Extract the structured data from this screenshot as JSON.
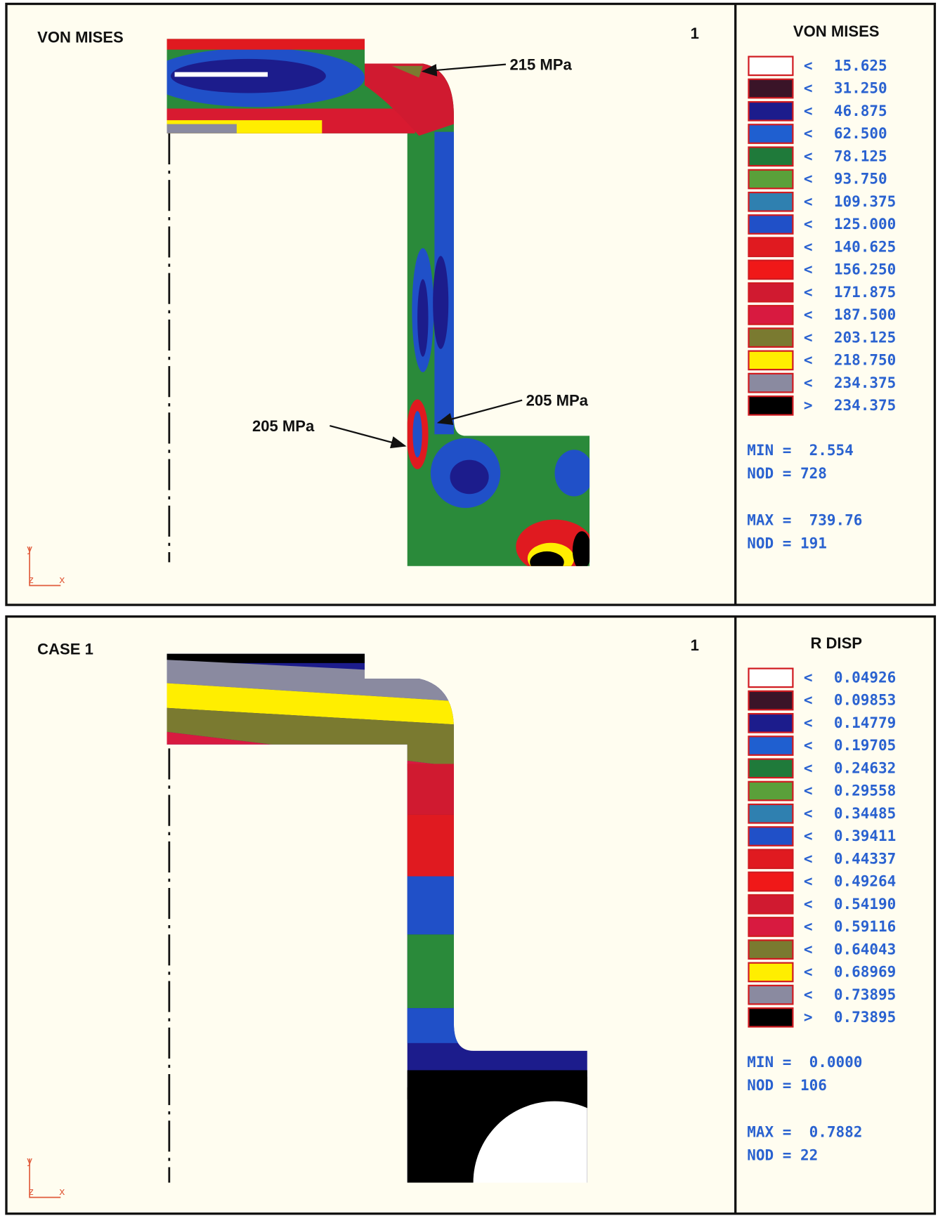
{
  "panels": [
    {
      "title": "VON MISES",
      "number": "1",
      "annotations": [
        "215 MPa",
        "205 MPa",
        "205 MPa"
      ],
      "legend": {
        "title": "VON MISES",
        "items": [
          {
            "op": "<",
            "value": "15.625",
            "color": "#ffffff"
          },
          {
            "op": "<",
            "value": "31.250",
            "color": "#3a1428"
          },
          {
            "op": "<",
            "value": "46.875",
            "color": "#1c1c8c"
          },
          {
            "op": "<",
            "value": "62.500",
            "color": "#1f5fd0"
          },
          {
            "op": "<",
            "value": "78.125",
            "color": "#1f7a3a"
          },
          {
            "op": "<",
            "value": "93.750",
            "color": "#5aa03a"
          },
          {
            "op": "<",
            "value": "109.375",
            "color": "#2f80b0"
          },
          {
            "op": "<",
            "value": "125.000",
            "color": "#2050c8"
          },
          {
            "op": "<",
            "value": "140.625",
            "color": "#e01a20"
          },
          {
            "op": "<",
            "value": "156.250",
            "color": "#f01818"
          },
          {
            "op": "<",
            "value": "171.875",
            "color": "#d01a30"
          },
          {
            "op": "<",
            "value": "187.500",
            "color": "#d81a40"
          },
          {
            "op": "<",
            "value": "203.125",
            "color": "#7a7a30"
          },
          {
            "op": "<",
            "value": "218.750",
            "color": "#ffee00"
          },
          {
            "op": "<",
            "value": "234.375",
            "color": "#8a8aa0"
          },
          {
            "op": ">",
            "value": "234.375",
            "color": "#000000"
          }
        ]
      },
      "stats": [
        "MIN =  2.554",
        "NOD = 728",
        "MAX =  739.76",
        "NOD = 191"
      ],
      "axes": {
        "y": "y",
        "z": "z",
        "x": "x"
      }
    },
    {
      "title": "CASE 1",
      "number": "1",
      "annotations": [],
      "legend": {
        "title": "R DISP",
        "items": [
          {
            "op": "<",
            "value": "0.04926",
            "color": "#ffffff"
          },
          {
            "op": "<",
            "value": "0.09853",
            "color": "#3a1428"
          },
          {
            "op": "<",
            "value": "0.14779",
            "color": "#1c1c8c"
          },
          {
            "op": "<",
            "value": "0.19705",
            "color": "#1f5fd0"
          },
          {
            "op": "<",
            "value": "0.24632",
            "color": "#1f7a3a"
          },
          {
            "op": "<",
            "value": "0.29558",
            "color": "#5aa03a"
          },
          {
            "op": "<",
            "value": "0.34485",
            "color": "#2f80b0"
          },
          {
            "op": "<",
            "value": "0.39411",
            "color": "#2050c8"
          },
          {
            "op": "<",
            "value": "0.44337",
            "color": "#e01a20"
          },
          {
            "op": "<",
            "value": "0.49264",
            "color": "#f01818"
          },
          {
            "op": "<",
            "value": "0.54190",
            "color": "#d01a30"
          },
          {
            "op": "<",
            "value": "0.59116",
            "color": "#d81a40"
          },
          {
            "op": "<",
            "value": "0.64043",
            "color": "#7a7a30"
          },
          {
            "op": "<",
            "value": "0.68969",
            "color": "#ffee00"
          },
          {
            "op": "<",
            "value": "0.73895",
            "color": "#8a8aa0"
          },
          {
            "op": ">",
            "value": "0.73895",
            "color": "#000000"
          }
        ]
      },
      "stats": [
        "MIN =  0.0000",
        "NOD = 106",
        "MAX =  0.7882",
        "NOD = 22"
      ],
      "axes": {
        "y": "y",
        "z": "z",
        "x": "x"
      }
    }
  ]
}
